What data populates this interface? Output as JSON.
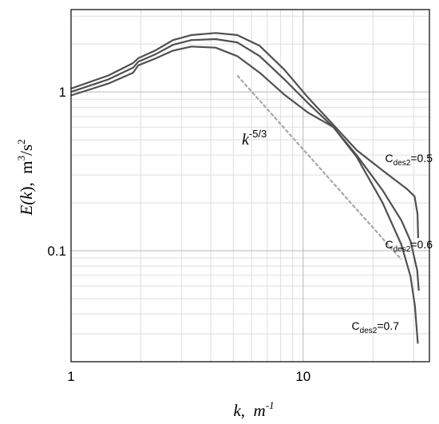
{
  "chart_data": {
    "type": "line",
    "x_scale": "log",
    "y_scale": "log",
    "xlim": [
      1,
      35
    ],
    "ylim": [
      0.02,
      3.3
    ],
    "grid": true,
    "x_ticks": [
      {
        "value": 1,
        "label": "1"
      },
      {
        "value": 10,
        "label": "10"
      }
    ],
    "y_ticks": [
      {
        "value": 0.1,
        "label": "0.1"
      },
      {
        "value": 1,
        "label": "1"
      }
    ],
    "xlabel": {
      "var": "k",
      "sep": ",  ",
      "unit_base": "m",
      "unit_sup": "-1"
    },
    "ylabel": {
      "pre": "E(",
      "var": "k",
      "post": "),  ",
      "unit_base": "m",
      "unit_sup1": "3",
      "unit_mid": "/s",
      "unit_sup2": "2"
    },
    "reference_line": {
      "label_base": "k",
      "label_sup": "-5/3",
      "x": [
        5.2,
        26.5
      ],
      "y": [
        1.27,
        0.088
      ],
      "color": "#a8a8a8"
    },
    "series": [
      {
        "label": {
          "base": "C",
          "sub": "des2",
          "value": "=0.5"
        },
        "x": [
          1,
          1.45,
          1.85,
          1.95,
          2.3,
          2.75,
          3.3,
          4.2,
          5.2,
          6.5,
          8.3,
          10.5,
          13.5,
          17,
          22,
          28,
          30.2,
          31.1,
          31.3
        ],
        "y": [
          1.05,
          1.27,
          1.52,
          1.63,
          1.82,
          2.12,
          2.28,
          2.35,
          2.28,
          1.95,
          1.38,
          0.92,
          0.62,
          0.43,
          0.32,
          0.245,
          0.22,
          0.17,
          0.12
        ]
      },
      {
        "label": {
          "base": "C",
          "sub": "des2",
          "value": "=0.6"
        },
        "x": [
          1,
          1.45,
          1.85,
          1.95,
          2.3,
          2.75,
          3.3,
          4.2,
          5.2,
          6.5,
          8.3,
          10.5,
          13.5,
          17,
          22,
          26.5,
          29,
          31,
          31.5
        ],
        "y": [
          1.0,
          1.2,
          1.42,
          1.55,
          1.72,
          1.98,
          2.12,
          2.15,
          2.05,
          1.68,
          1.2,
          0.85,
          0.6,
          0.4,
          0.24,
          0.155,
          0.115,
          0.075,
          0.056
        ]
      },
      {
        "label": {
          "base": "C",
          "sub": "des2",
          "value": "=0.7"
        },
        "x": [
          1,
          1.45,
          1.85,
          1.95,
          2.3,
          2.75,
          3.3,
          4.2,
          5.2,
          6.5,
          8.3,
          10.5,
          13.5,
          17,
          22,
          26.5,
          29,
          30.3,
          31.2
        ],
        "y": [
          0.95,
          1.13,
          1.32,
          1.47,
          1.62,
          1.82,
          1.93,
          1.9,
          1.68,
          1.32,
          0.96,
          0.74,
          0.6,
          0.39,
          0.2,
          0.109,
          0.069,
          0.045,
          0.026
        ]
      }
    ],
    "line_color": "#505050"
  }
}
